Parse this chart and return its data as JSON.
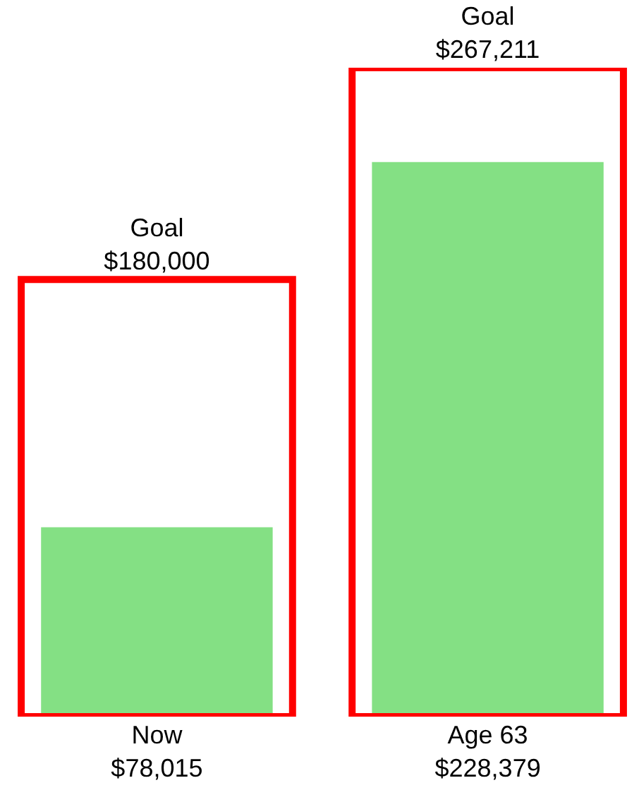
{
  "chart_data": {
    "type": "bar",
    "categories": [
      "Now",
      "Age 63"
    ],
    "series": [
      {
        "color": "#ff0000",
        "values": [
          180000,
          267211
        ],
        "value_labels": [
          "Goal\n$180,000",
          "Goal\n$267,211"
        ]
      },
      {
        "color": "#84e084",
        "values": [
          78015,
          228379
        ],
        "value_labels": [
          "$78,015",
          "$228,379"
        ]
      }
    ]
  }
}
